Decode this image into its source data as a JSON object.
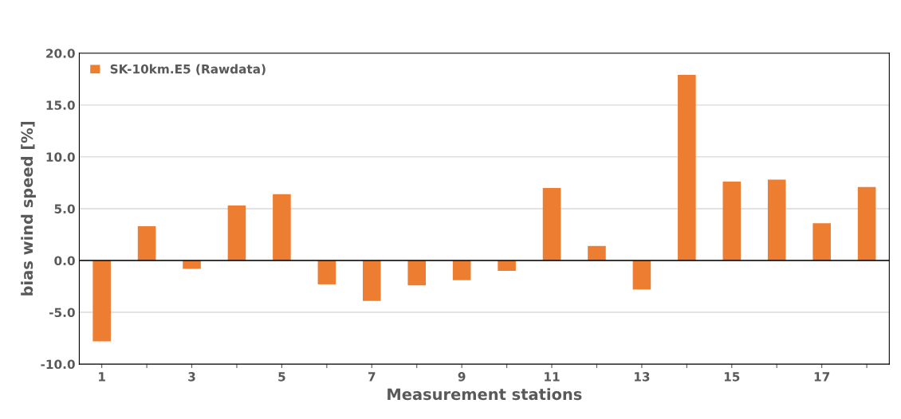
{
  "chart_data": {
    "type": "bar",
    "xlabel": "Measurement stations",
    "ylabel": "bias wind speed [%]",
    "categories": [
      "1",
      null,
      "3",
      null,
      "5",
      null,
      "7",
      null,
      "9",
      null,
      "11",
      null,
      "13",
      null,
      "15",
      null,
      "17",
      null
    ],
    "series": [
      {
        "name": "SK-10km.E5 (Rawdata)",
        "color": "#ed7d31",
        "values": [
          -7.8,
          3.3,
          -0.8,
          5.3,
          6.4,
          -2.3,
          -3.9,
          -2.4,
          -1.9,
          -1.0,
          7.0,
          1.4,
          -2.8,
          17.9,
          7.6,
          7.8,
          3.6,
          7.1
        ]
      }
    ],
    "ylim": [
      -10,
      20
    ],
    "yticks": [
      {
        "value": -10,
        "label": "-10.0"
      },
      {
        "value": -5,
        "label": "-5.0"
      },
      {
        "value": 0,
        "label": "0.0"
      },
      {
        "value": 5,
        "label": "5.0"
      },
      {
        "value": 10,
        "label": "10.0"
      },
      {
        "value": 15,
        "label": "15.0"
      },
      {
        "value": 20,
        "label": "20.0"
      }
    ],
    "grid": "y",
    "legend": "top left"
  }
}
